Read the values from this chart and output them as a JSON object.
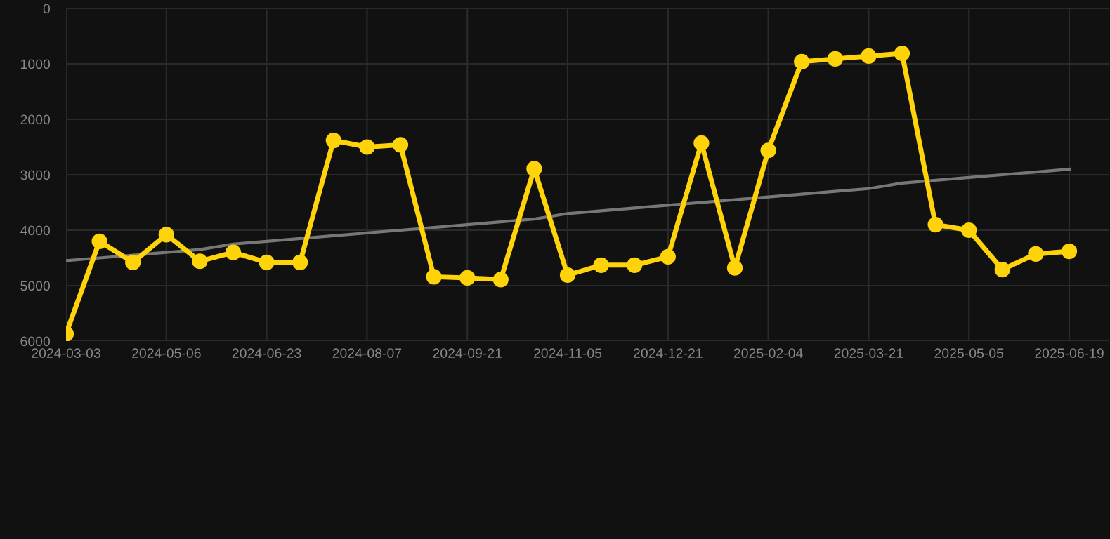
{
  "chart_data": {
    "type": "line",
    "categories": [
      "2024-03-03",
      null,
      null,
      "2024-05-06",
      null,
      null,
      "2024-06-23",
      null,
      null,
      "2024-08-07",
      null,
      null,
      "2024-09-21",
      null,
      null,
      "2024-11-05",
      null,
      null,
      "2024-12-21",
      null,
      null,
      "2025-02-04",
      null,
      null,
      "2025-03-21",
      null,
      null,
      "2025-05-05",
      null,
      null,
      "2025-06-19"
    ],
    "series": [
      {
        "color": "#ffd30a",
        "marker": "circle",
        "values": [
          5870,
          4200,
          4580,
          4080,
          4560,
          4400,
          4580,
          4580,
          2380,
          2500,
          2460,
          4840,
          4860,
          4890,
          2890,
          4810,
          4630,
          4630,
          4480,
          2430,
          4680,
          2560,
          960,
          910,
          860,
          810,
          3900,
          4000,
          4710,
          4430,
          4380
        ]
      },
      {
        "color": "#777777",
        "marker": "none",
        "values": [
          4550,
          4500,
          4450,
          4400,
          4350,
          4250,
          4200,
          4150,
          4100,
          4050,
          4000,
          3950,
          3900,
          3850,
          3800,
          3700,
          3650,
          3600,
          3550,
          3500,
          3450,
          3400,
          3350,
          3300,
          3250,
          3150,
          3100,
          3050,
          3000,
          2950,
          2900
        ]
      }
    ],
    "ylim": [
      6000,
      0
    ],
    "yticks": [
      0,
      1000,
      2000,
      3000,
      4000,
      5000,
      6000
    ],
    "grid": true,
    "legend": false
  }
}
